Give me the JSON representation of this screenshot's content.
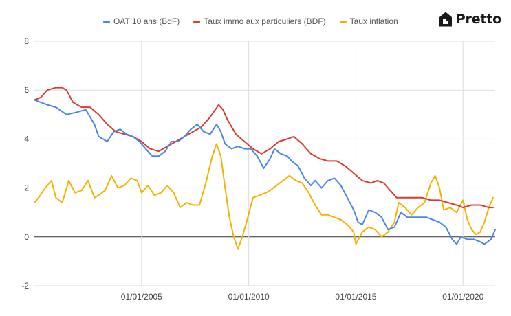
{
  "brand": {
    "name": "Pretto"
  },
  "legend": [
    {
      "label": "OAT 10 ans (BdF)",
      "color": "#4a86e8"
    },
    {
      "label": "Taux immo aux particuliers (BDF)",
      "color": "#db3a2f"
    },
    {
      "label": "Taux inflation",
      "color": "#f0b400"
    }
  ],
  "chart_data": {
    "type": "line",
    "legend_position": "top",
    "grid": true,
    "x_axis": {
      "ticks": [
        "01/01/2005",
        "01/01/2010",
        "01/01/2015",
        "01/01/2020"
      ]
    },
    "y_axis": {
      "min": -2,
      "max": 8,
      "ticks": [
        8,
        6,
        4,
        2,
        0,
        -2
      ]
    },
    "series": [
      {
        "name": "OAT 10 ans (BdF)",
        "color": "#4a86e8",
        "points": [
          [
            2000.0,
            5.6
          ],
          [
            2000.3,
            5.5
          ],
          [
            2000.6,
            5.4
          ],
          [
            2001.0,
            5.3
          ],
          [
            2001.5,
            5.0
          ],
          [
            2002.0,
            5.1
          ],
          [
            2002.4,
            5.2
          ],
          [
            2002.8,
            4.6
          ],
          [
            2003.0,
            4.1
          ],
          [
            2003.4,
            3.9
          ],
          [
            2003.7,
            4.3
          ],
          [
            2004.0,
            4.4
          ],
          [
            2004.3,
            4.2
          ],
          [
            2004.6,
            4.1
          ],
          [
            2004.9,
            3.9
          ],
          [
            2005.2,
            3.6
          ],
          [
            2005.5,
            3.3
          ],
          [
            2005.8,
            3.3
          ],
          [
            2006.1,
            3.5
          ],
          [
            2006.4,
            3.9
          ],
          [
            2006.7,
            3.9
          ],
          [
            2007.0,
            4.1
          ],
          [
            2007.3,
            4.4
          ],
          [
            2007.6,
            4.6
          ],
          [
            2007.9,
            4.3
          ],
          [
            2008.2,
            4.2
          ],
          [
            2008.5,
            4.6
          ],
          [
            2008.7,
            4.3
          ],
          [
            2008.9,
            3.8
          ],
          [
            2009.2,
            3.6
          ],
          [
            2009.5,
            3.7
          ],
          [
            2009.8,
            3.6
          ],
          [
            2010.1,
            3.6
          ],
          [
            2010.4,
            3.3
          ],
          [
            2010.7,
            2.8
          ],
          [
            2011.0,
            3.2
          ],
          [
            2011.2,
            3.6
          ],
          [
            2011.5,
            3.4
          ],
          [
            2011.8,
            3.3
          ],
          [
            2012.0,
            3.1
          ],
          [
            2012.3,
            2.9
          ],
          [
            2012.6,
            2.4
          ],
          [
            2012.9,
            2.1
          ],
          [
            2013.1,
            2.3
          ],
          [
            2013.4,
            2.0
          ],
          [
            2013.7,
            2.3
          ],
          [
            2014.0,
            2.4
          ],
          [
            2014.3,
            2.1
          ],
          [
            2014.6,
            1.6
          ],
          [
            2014.9,
            1.1
          ],
          [
            2015.1,
            0.6
          ],
          [
            2015.3,
            0.5
          ],
          [
            2015.6,
            1.1
          ],
          [
            2015.9,
            1.0
          ],
          [
            2016.2,
            0.8
          ],
          [
            2016.5,
            0.3
          ],
          [
            2016.8,
            0.4
          ],
          [
            2017.1,
            1.0
          ],
          [
            2017.4,
            0.8
          ],
          [
            2017.7,
            0.8
          ],
          [
            2018.0,
            0.8
          ],
          [
            2018.3,
            0.8
          ],
          [
            2018.6,
            0.7
          ],
          [
            2018.9,
            0.6
          ],
          [
            2019.2,
            0.4
          ],
          [
            2019.5,
            -0.1
          ],
          [
            2019.7,
            -0.3
          ],
          [
            2019.9,
            0.0
          ],
          [
            2020.2,
            -0.1
          ],
          [
            2020.5,
            -0.1
          ],
          [
            2020.8,
            -0.2
          ],
          [
            2021.0,
            -0.3
          ],
          [
            2021.3,
            -0.1
          ],
          [
            2021.5,
            0.3
          ]
        ]
      },
      {
        "name": "Taux immo aux particuliers (BDF)",
        "color": "#db3a2f",
        "points": [
          [
            2000.0,
            5.6
          ],
          [
            2000.3,
            5.7
          ],
          [
            2000.6,
            6.0
          ],
          [
            2001.0,
            6.1
          ],
          [
            2001.3,
            6.1
          ],
          [
            2001.5,
            6.0
          ],
          [
            2001.8,
            5.5
          ],
          [
            2002.2,
            5.3
          ],
          [
            2002.6,
            5.3
          ],
          [
            2003.0,
            5.0
          ],
          [
            2003.4,
            4.6
          ],
          [
            2003.8,
            4.3
          ],
          [
            2004.2,
            4.2
          ],
          [
            2004.6,
            4.1
          ],
          [
            2005.0,
            3.9
          ],
          [
            2005.4,
            3.6
          ],
          [
            2005.8,
            3.5
          ],
          [
            2006.2,
            3.7
          ],
          [
            2006.6,
            3.9
          ],
          [
            2007.0,
            4.1
          ],
          [
            2007.4,
            4.3
          ],
          [
            2007.8,
            4.5
          ],
          [
            2008.2,
            4.9
          ],
          [
            2008.6,
            5.4
          ],
          [
            2008.8,
            5.2
          ],
          [
            2009.0,
            4.8
          ],
          [
            2009.4,
            4.2
          ],
          [
            2009.8,
            3.9
          ],
          [
            2010.2,
            3.6
          ],
          [
            2010.6,
            3.4
          ],
          [
            2011.0,
            3.6
          ],
          [
            2011.4,
            3.9
          ],
          [
            2011.8,
            4.0
          ],
          [
            2012.1,
            4.1
          ],
          [
            2012.5,
            3.8
          ],
          [
            2012.9,
            3.4
          ],
          [
            2013.3,
            3.2
          ],
          [
            2013.7,
            3.1
          ],
          [
            2014.1,
            3.1
          ],
          [
            2014.5,
            2.9
          ],
          [
            2014.9,
            2.6
          ],
          [
            2015.3,
            2.3
          ],
          [
            2015.7,
            2.2
          ],
          [
            2016.0,
            2.3
          ],
          [
            2016.3,
            2.2
          ],
          [
            2016.6,
            1.9
          ],
          [
            2016.9,
            1.6
          ],
          [
            2017.3,
            1.6
          ],
          [
            2017.7,
            1.6
          ],
          [
            2018.1,
            1.6
          ],
          [
            2018.5,
            1.5
          ],
          [
            2018.9,
            1.5
          ],
          [
            2019.3,
            1.4
          ],
          [
            2019.7,
            1.3
          ],
          [
            2020.0,
            1.2
          ],
          [
            2020.4,
            1.3
          ],
          [
            2020.8,
            1.3
          ],
          [
            2021.2,
            1.2
          ],
          [
            2021.4,
            1.2
          ]
        ]
      },
      {
        "name": "Taux inflation",
        "color": "#f0b400",
        "points": [
          [
            2000.0,
            1.4
          ],
          [
            2000.2,
            1.6
          ],
          [
            2000.5,
            2.0
          ],
          [
            2000.8,
            2.3
          ],
          [
            2001.0,
            1.6
          ],
          [
            2001.3,
            1.4
          ],
          [
            2001.6,
            2.3
          ],
          [
            2001.9,
            1.8
          ],
          [
            2002.2,
            1.9
          ],
          [
            2002.5,
            2.3
          ],
          [
            2002.8,
            1.6
          ],
          [
            2003.0,
            1.7
          ],
          [
            2003.3,
            1.9
          ],
          [
            2003.6,
            2.5
          ],
          [
            2003.9,
            2.0
          ],
          [
            2004.2,
            2.1
          ],
          [
            2004.5,
            2.4
          ],
          [
            2004.8,
            2.3
          ],
          [
            2005.0,
            1.8
          ],
          [
            2005.3,
            2.1
          ],
          [
            2005.6,
            1.7
          ],
          [
            2005.9,
            1.8
          ],
          [
            2006.2,
            2.1
          ],
          [
            2006.5,
            1.8
          ],
          [
            2006.8,
            1.2
          ],
          [
            2007.1,
            1.4
          ],
          [
            2007.4,
            1.3
          ],
          [
            2007.7,
            1.3
          ],
          [
            2008.0,
            2.2
          ],
          [
            2008.3,
            3.3
          ],
          [
            2008.5,
            3.8
          ],
          [
            2008.7,
            3.3
          ],
          [
            2008.9,
            2.0
          ],
          [
            2009.1,
            0.8
          ],
          [
            2009.3,
            0.0
          ],
          [
            2009.5,
            -0.5
          ],
          [
            2009.7,
            0.0
          ],
          [
            2009.9,
            0.6
          ],
          [
            2010.2,
            1.6
          ],
          [
            2010.5,
            1.7
          ],
          [
            2010.8,
            1.8
          ],
          [
            2011.0,
            1.9
          ],
          [
            2011.3,
            2.1
          ],
          [
            2011.6,
            2.3
          ],
          [
            2011.9,
            2.5
          ],
          [
            2012.2,
            2.3
          ],
          [
            2012.5,
            2.2
          ],
          [
            2012.8,
            1.8
          ],
          [
            2013.1,
            1.3
          ],
          [
            2013.4,
            0.9
          ],
          [
            2013.7,
            0.9
          ],
          [
            2014.0,
            0.8
          ],
          [
            2014.3,
            0.7
          ],
          [
            2014.6,
            0.5
          ],
          [
            2014.9,
            0.2
          ],
          [
            2015.0,
            -0.3
          ],
          [
            2015.3,
            0.2
          ],
          [
            2015.6,
            0.4
          ],
          [
            2015.9,
            0.3
          ],
          [
            2016.2,
            0.0
          ],
          [
            2016.5,
            0.2
          ],
          [
            2016.8,
            0.6
          ],
          [
            2017.0,
            1.4
          ],
          [
            2017.3,
            1.2
          ],
          [
            2017.6,
            0.9
          ],
          [
            2017.9,
            1.2
          ],
          [
            2018.2,
            1.4
          ],
          [
            2018.5,
            2.2
          ],
          [
            2018.7,
            2.5
          ],
          [
            2018.9,
            2.0
          ],
          [
            2019.1,
            1.1
          ],
          [
            2019.4,
            1.2
          ],
          [
            2019.7,
            1.0
          ],
          [
            2020.0,
            1.5
          ],
          [
            2020.2,
            0.7
          ],
          [
            2020.4,
            0.3
          ],
          [
            2020.6,
            0.1
          ],
          [
            2020.8,
            0.2
          ],
          [
            2021.0,
            0.6
          ],
          [
            2021.2,
            1.2
          ],
          [
            2021.4,
            1.6
          ]
        ]
      }
    ]
  }
}
